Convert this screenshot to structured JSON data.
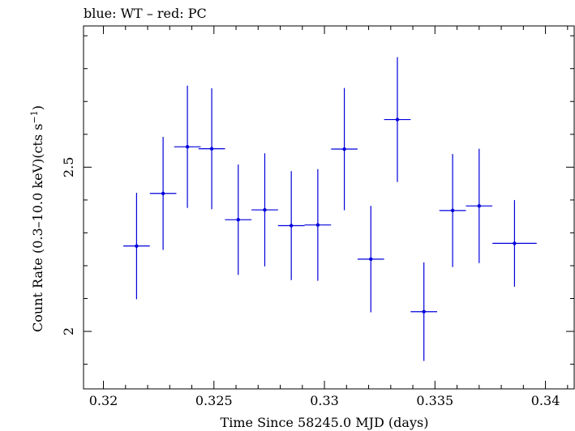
{
  "chart_data": {
    "type": "scatter",
    "title": "blue: WT – red: PC",
    "xlabel": "Time Since 58245.0 MJD (days)",
    "ylabel_main": "Count Rate (0.3–10.0 keV)(cts s",
    "ylabel_sup": "−1",
    "ylabel_close": ")",
    "xlim": [
      0.3191,
      0.3413
    ],
    "ylim": [
      1.825,
      2.93
    ],
    "xticks": [
      0.32,
      0.325,
      0.33,
      0.335,
      0.34
    ],
    "xtick_labels": [
      "0.32",
      "0.325",
      "0.33",
      "0.335",
      "0.34"
    ],
    "yticks": [
      2,
      2.5
    ],
    "ytick_labels": [
      "2",
      "2.5"
    ],
    "grid": false,
    "series": [
      {
        "color": "#0000dd",
        "points": [
          {
            "x": 0.3215,
            "xerr": 0.0006,
            "y": 2.26,
            "yerr": 0.162
          },
          {
            "x": 0.3227,
            "xerr": 0.0006,
            "y": 2.42,
            "yerr": 0.172
          },
          {
            "x": 0.3238,
            "xerr": 0.0006,
            "y": 2.562,
            "yerr": 0.186
          },
          {
            "x": 0.3249,
            "xerr": 0.0006,
            "y": 2.556,
            "yerr": 0.184
          },
          {
            "x": 0.3261,
            "xerr": 0.0006,
            "y": 2.34,
            "yerr": 0.168
          },
          {
            "x": 0.3273,
            "xerr": 0.0006,
            "y": 2.37,
            "yerr": 0.172
          },
          {
            "x": 0.3285,
            "xerr": 0.0006,
            "y": 2.322,
            "yerr": 0.166
          },
          {
            "x": 0.3297,
            "xerr": 0.0006,
            "y": 2.324,
            "yerr": 0.17
          },
          {
            "x": 0.3309,
            "xerr": 0.0006,
            "y": 2.555,
            "yerr": 0.186
          },
          {
            "x": 0.3321,
            "xerr": 0.0006,
            "y": 2.22,
            "yerr": 0.162
          },
          {
            "x": 0.3333,
            "xerr": 0.0006,
            "y": 2.645,
            "yerr": 0.19
          },
          {
            "x": 0.3345,
            "xerr": 0.0006,
            "y": 2.06,
            "yerr": 0.15
          },
          {
            "x": 0.3358,
            "xerr": 0.0006,
            "y": 2.368,
            "yerr": 0.172
          },
          {
            "x": 0.337,
            "xerr": 0.0006,
            "y": 2.382,
            "yerr": 0.174
          },
          {
            "x": 0.3386,
            "xerr": 0.001,
            "y": 2.268,
            "yerr": 0.132
          }
        ]
      }
    ]
  }
}
